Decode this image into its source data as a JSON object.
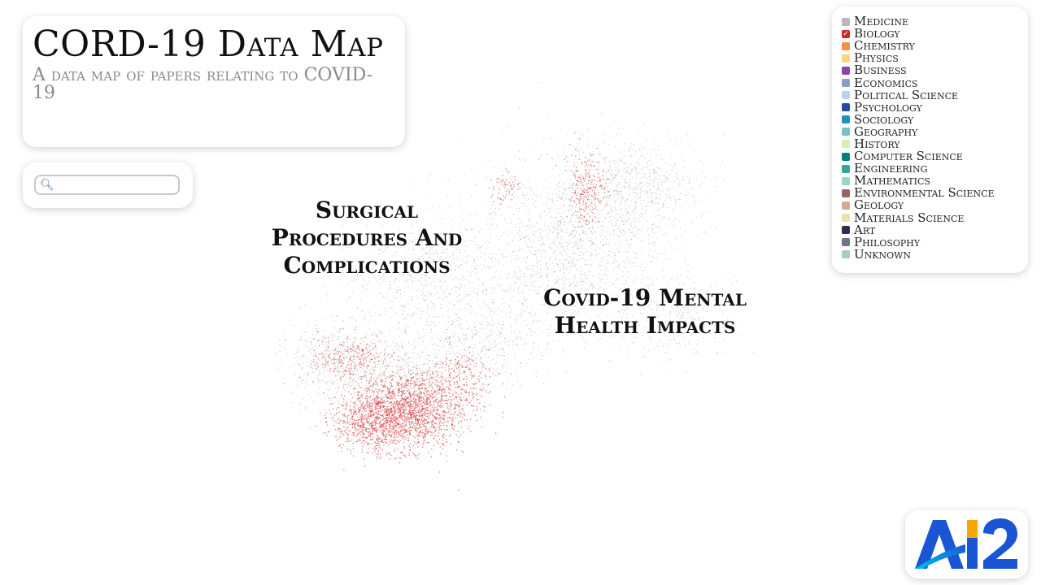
{
  "header": {
    "title": "CORD-19 Data Map",
    "subtitle": "A data map of papers relating to COVID-19"
  },
  "search": {
    "placeholder": "",
    "value": ""
  },
  "legend": {
    "items": [
      {
        "label": "Medicine",
        "color": "#b8b8b8",
        "checked": false
      },
      {
        "label": "Biology",
        "color": "#d62728",
        "checked": true
      },
      {
        "label": "Chemistry",
        "color": "#f5923e",
        "checked": false
      },
      {
        "label": "Physics",
        "color": "#fdd47a",
        "checked": false
      },
      {
        "label": "Business",
        "color": "#8e44ad",
        "checked": false
      },
      {
        "label": "Economics",
        "color": "#8e9ccb",
        "checked": false
      },
      {
        "label": "Political Science",
        "color": "#bcd4e8",
        "checked": false
      },
      {
        "label": "Psychology",
        "color": "#1f4e9c",
        "checked": false
      },
      {
        "label": "Sociology",
        "color": "#2290bf",
        "checked": false
      },
      {
        "label": "Geography",
        "color": "#72c6bd",
        "checked": false
      },
      {
        "label": "History",
        "color": "#d6efb5",
        "checked": false
      },
      {
        "label": "Computer Science",
        "color": "#00807a",
        "checked": false
      },
      {
        "label": "Engineering",
        "color": "#3aa39b",
        "checked": false
      },
      {
        "label": "Mathematics",
        "color": "#9fd2cb",
        "checked": false
      },
      {
        "label": "Environmental Science",
        "color": "#9c6168",
        "checked": false
      },
      {
        "label": "Geology",
        "color": "#d6a993",
        "checked": false
      },
      {
        "label": "Materials Science",
        "color": "#ebe2b0",
        "checked": false
      },
      {
        "label": "Art",
        "color": "#2c2f4e",
        "checked": false
      },
      {
        "label": "Philosophy",
        "color": "#6e7488",
        "checked": false
      },
      {
        "label": "Unknown",
        "color": "#a9cbc5",
        "checked": false
      }
    ]
  },
  "map": {
    "clusters": [
      {
        "label": "Surgical Procedures And Complications"
      },
      {
        "label": "Covid-19 Mental Health Impacts"
      }
    ],
    "highlight_color": "#d62728",
    "background_point_color": "#666666"
  },
  "logo": {
    "text": "AI2",
    "colors": [
      "#1a55d4",
      "#00b3e6",
      "#f6a800"
    ]
  }
}
